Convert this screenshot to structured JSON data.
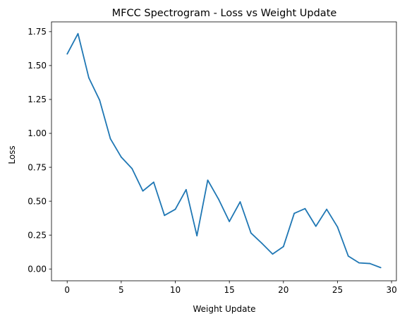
{
  "chart_data": {
    "type": "line",
    "title": "MFCC Spectrogram - Loss vs Weight Update",
    "xlabel": "Weight Update",
    "ylabel": "Loss",
    "xlim": [
      -1.45,
      30.45
    ],
    "ylim": [
      -0.087,
      1.822
    ],
    "xticks": [
      0,
      5,
      10,
      15,
      20,
      25,
      30
    ],
    "xtick_labels": [
      "0",
      "5",
      "10",
      "15",
      "20",
      "25",
      "30"
    ],
    "yticks": [
      0.0,
      0.25,
      0.5,
      0.75,
      1.0,
      1.25,
      1.5,
      1.75
    ],
    "ytick_labels": [
      "0.00",
      "0.25",
      "0.50",
      "0.75",
      "1.00",
      "1.25",
      "1.50",
      "1.75"
    ],
    "grid": false,
    "color": "#1f77b4",
    "series": [
      {
        "x": [
          0,
          1,
          2,
          3,
          4,
          5,
          6,
          7,
          8,
          9,
          10,
          11,
          12,
          13,
          14,
          15,
          16,
          17,
          18,
          19,
          20,
          21,
          22,
          23,
          24,
          25,
          26,
          27,
          28,
          29
        ],
        "values": [
          1.585,
          1.735,
          1.41,
          1.245,
          0.96,
          0.825,
          0.74,
          0.575,
          0.64,
          0.395,
          0.44,
          0.585,
          0.245,
          0.655,
          0.515,
          0.35,
          0.495,
          0.265,
          0.19,
          0.11,
          0.165,
          0.41,
          0.445,
          0.315,
          0.44,
          0.31,
          0.095,
          0.045,
          0.04,
          0.01
        ]
      }
    ]
  }
}
